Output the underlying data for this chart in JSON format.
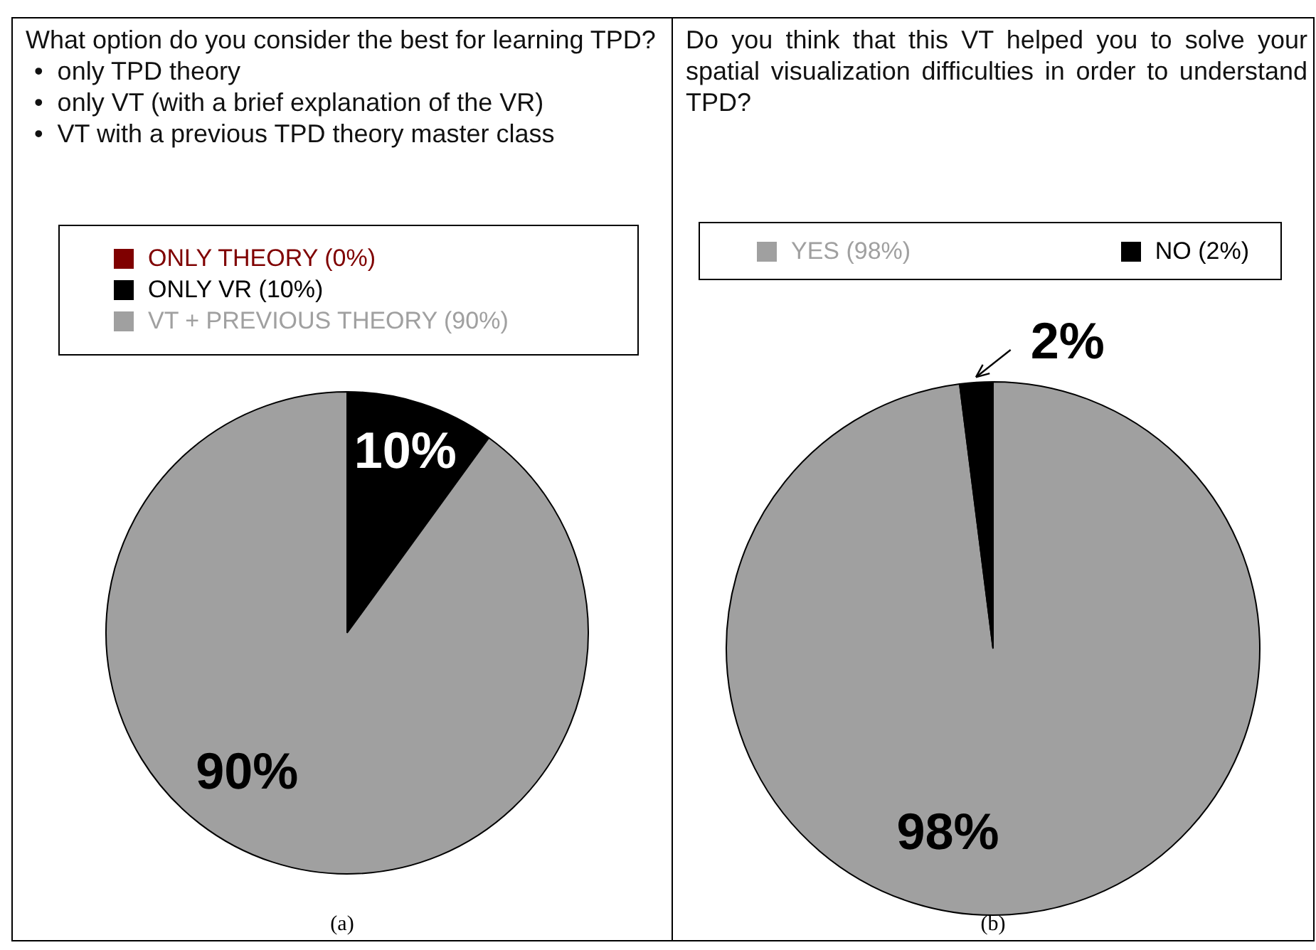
{
  "chart_data": [
    {
      "type": "pie",
      "title": "What option do you consider the best for learning TPD?",
      "categories": [
        "ONLY THEORY (0%)",
        "ONLY VR (10%)",
        "VT + PREVIOUS THEORY (90%)"
      ],
      "values": [
        0,
        10,
        90
      ],
      "colors": [
        "#7f0000",
        "#000000",
        "#a0a0a0"
      ],
      "value_labels": [
        null,
        "10%",
        "90%"
      ],
      "legend": "top",
      "annotations": [
        "•  only TPD theory",
        "•  only VT (with a brief explanation of the VR)",
        "•  VT with a previous TPD theory master class",
        "(a)"
      ]
    },
    {
      "type": "pie",
      "title": "Do you think that this VT helped you to solve your spatial visualization difficulties in order to understand TPD?",
      "categories": [
        "YES (98%)",
        "NO (2%)"
      ],
      "values": [
        98,
        2
      ],
      "colors": [
        "#a0a0a0",
        "#000000"
      ],
      "value_labels": [
        "98%",
        "2%"
      ],
      "legend": "top",
      "annotations": [
        "(b)"
      ]
    }
  ]
}
